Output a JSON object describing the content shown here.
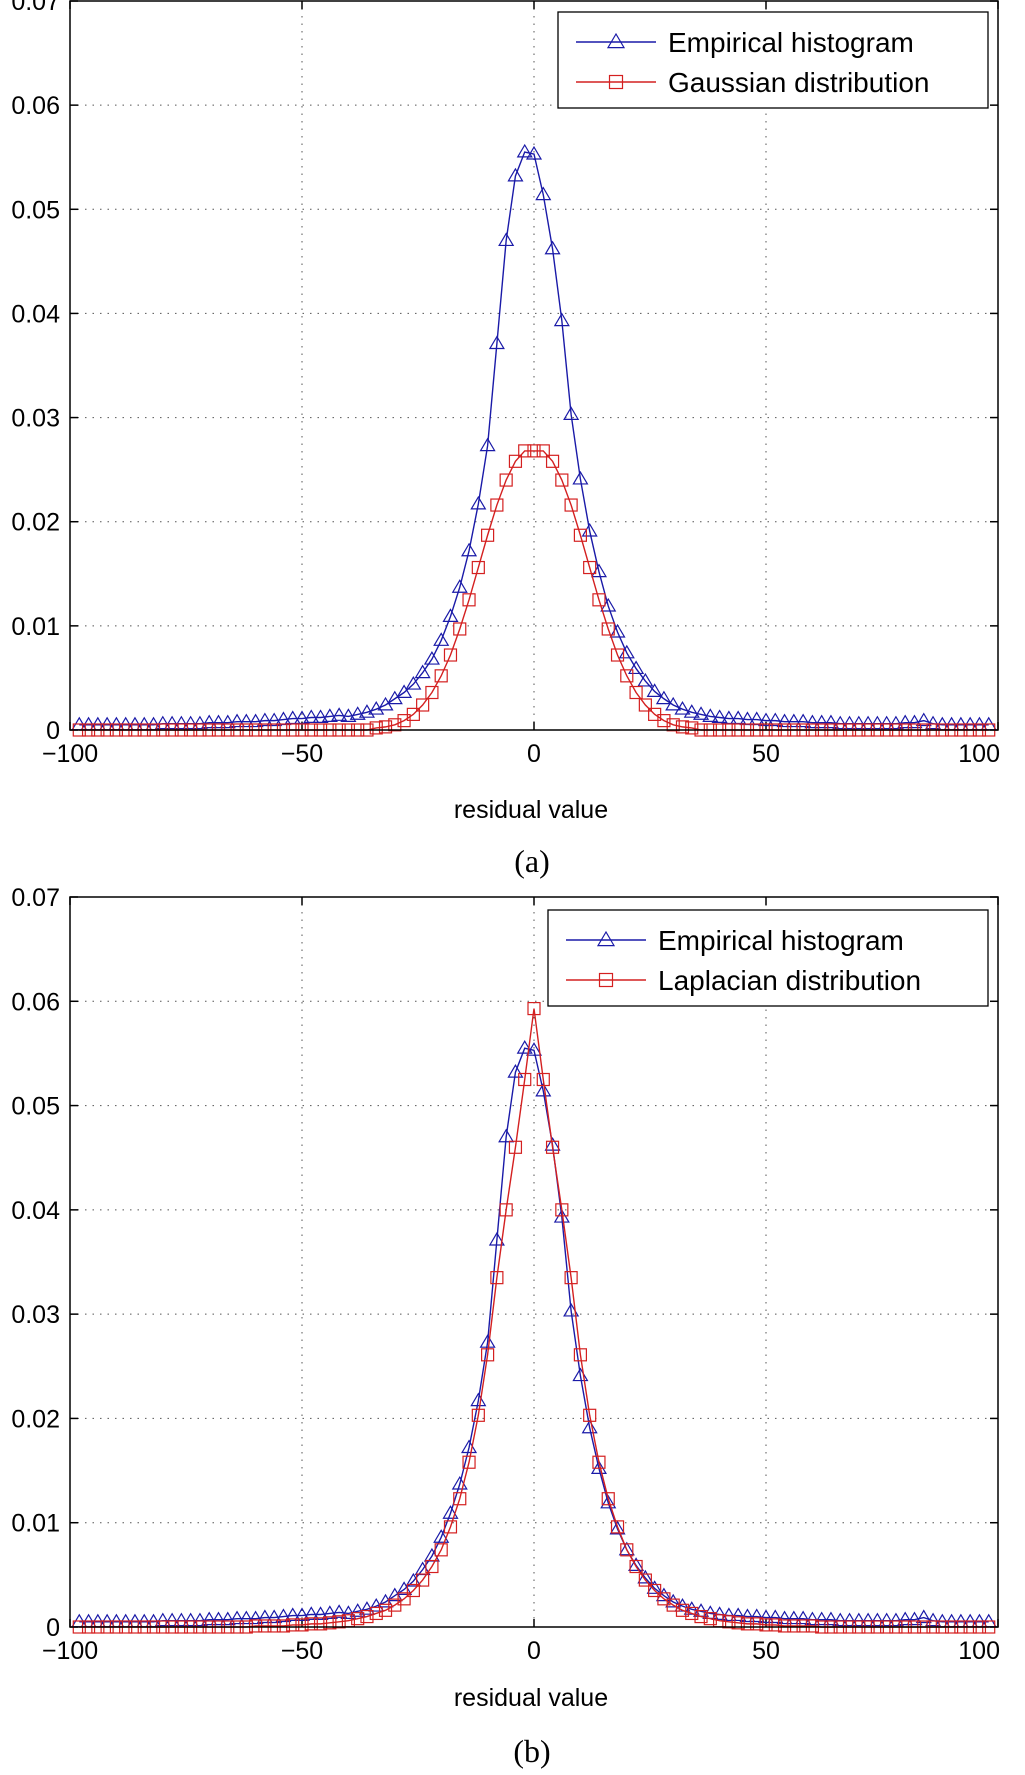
{
  "chart_data": [
    {
      "type": "line",
      "caption": "(a)",
      "xlabel": "residual value",
      "xlim": [
        -100,
        100
      ],
      "ylim": [
        0,
        0.07
      ],
      "xticks": [
        -100,
        -50,
        0,
        50,
        100
      ],
      "xtick_labels": [
        "−100",
        "−50",
        "0",
        "50",
        "100"
      ],
      "yticks": [
        0,
        0.01,
        0.02,
        0.03,
        0.04,
        0.05,
        0.06,
        0.07
      ],
      "ytick_labels": [
        "0",
        "0.01",
        "0.02",
        "0.03",
        "0.04",
        "0.05",
        "0.06",
        "0.07"
      ],
      "grid": true,
      "legend_position": "top-right",
      "series": [
        {
          "name": "Empirical histogram",
          "color": "#1a1aa8",
          "marker": "triangle",
          "x": [
            -98,
            -96,
            -94,
            -92,
            -90,
            -88,
            -86,
            -84,
            -82,
            -80,
            -78,
            -76,
            -74,
            -72,
            -70,
            -68,
            -66,
            -64,
            -62,
            -60,
            -58,
            -56,
            -54,
            -52,
            -50,
            -48,
            -46,
            -44,
            -42,
            -40,
            -38,
            -36,
            -34,
            -32,
            -30,
            -28,
            -26,
            -24,
            -22,
            -20,
            -18,
            -16,
            -14,
            -12,
            -10,
            -8,
            -6,
            -4,
            -2,
            0,
            2,
            4,
            6,
            8,
            10,
            12,
            14,
            16,
            18,
            20,
            22,
            24,
            26,
            28,
            30,
            32,
            34,
            36,
            38,
            40,
            42,
            44,
            46,
            48,
            50,
            52,
            54,
            56,
            58,
            60,
            62,
            64,
            66,
            68,
            70,
            72,
            74,
            76,
            78,
            80,
            82,
            84,
            86,
            88,
            90,
            92,
            94,
            96,
            98
          ],
          "y": [
            0.0005,
            0.0005,
            0.0005,
            0.0005,
            0.0005,
            0.0005,
            0.0005,
            0.0005,
            0.0005,
            0.0006,
            0.0006,
            0.0006,
            0.0006,
            0.0006,
            0.0007,
            0.0007,
            0.0007,
            0.0008,
            0.0008,
            0.0008,
            0.0009,
            0.0009,
            0.001,
            0.0011,
            0.0011,
            0.0012,
            0.0012,
            0.0013,
            0.0014,
            0.0013,
            0.0015,
            0.0017,
            0.002,
            0.0024,
            0.003,
            0.0036,
            0.0044,
            0.0055,
            0.0068,
            0.0086,
            0.0109,
            0.0137,
            0.0172,
            0.0217,
            0.0273,
            0.0371,
            0.047,
            0.0532,
            0.0555,
            0.0553,
            0.0514,
            0.0462,
            0.0393,
            0.0303,
            0.0241,
            0.0191,
            0.0152,
            0.0119,
            0.0094,
            0.0074,
            0.0059,
            0.0047,
            0.0037,
            0.003,
            0.0024,
            0.002,
            0.0017,
            0.0015,
            0.0013,
            0.0012,
            0.0011,
            0.0011,
            0.001,
            0.001,
            0.0009,
            0.0009,
            0.0008,
            0.0008,
            0.0008,
            0.0007,
            0.0007,
            0.0007,
            0.0006,
            0.0006,
            0.0006,
            0.0006,
            0.0006,
            0.0006,
            0.0006,
            0.0007,
            0.0007,
            0.0009,
            0.0006,
            0.0005,
            0.0005,
            0.0005,
            0.0005,
            0.0005,
            0.0005
          ]
        },
        {
          "name": "Gaussian distribution",
          "color": "#d42020",
          "marker": "square",
          "x": [
            -98,
            -96,
            -94,
            -92,
            -90,
            -88,
            -86,
            -84,
            -82,
            -80,
            -78,
            -76,
            -74,
            -72,
            -70,
            -68,
            -66,
            -64,
            -62,
            -60,
            -58,
            -56,
            -54,
            -52,
            -50,
            -48,
            -46,
            -44,
            -42,
            -40,
            -38,
            -36,
            -34,
            -32,
            -30,
            -28,
            -26,
            -24,
            -22,
            -20,
            -18,
            -16,
            -14,
            -12,
            -10,
            -8,
            -6,
            -4,
            -2,
            0,
            2,
            4,
            6,
            8,
            10,
            12,
            14,
            16,
            18,
            20,
            22,
            24,
            26,
            28,
            30,
            32,
            34,
            36,
            38,
            40,
            42,
            44,
            46,
            48,
            50,
            52,
            54,
            56,
            58,
            60,
            62,
            64,
            66,
            68,
            70,
            72,
            74,
            76,
            78,
            80,
            82,
            84,
            86,
            88,
            90,
            92,
            94,
            96,
            98
          ],
          "y": [
            0,
            0,
            0,
            0,
            0,
            0,
            0,
            0,
            0,
            0,
            0,
            0,
            0,
            0,
            0,
            0,
            0,
            0,
            0,
            0,
            0,
            0,
            0,
            0,
            0,
            0,
            0,
            0,
            0,
            0,
            0,
            0,
            0.0002,
            0.0003,
            0.0005,
            0.0009,
            0.0015,
            0.0024,
            0.0036,
            0.0052,
            0.0072,
            0.0097,
            0.0125,
            0.0156,
            0.0187,
            0.0216,
            0.024,
            0.0258,
            0.0268,
            0.0268,
            0.0268,
            0.0258,
            0.024,
            0.0216,
            0.0187,
            0.0156,
            0.0125,
            0.0097,
            0.0072,
            0.0052,
            0.0036,
            0.0024,
            0.0015,
            0.0009,
            0.0005,
            0.0003,
            0.0002,
            0,
            0,
            0,
            0,
            0,
            0,
            0,
            0,
            0,
            0,
            0,
            0,
            0,
            0,
            0,
            0,
            0,
            0,
            0,
            0,
            0,
            0,
            0,
            0,
            0,
            0,
            0,
            0,
            0,
            0,
            0,
            0
          ]
        }
      ]
    },
    {
      "type": "line",
      "caption": "(b)",
      "xlabel": "residual value",
      "xlim": [
        -100,
        100
      ],
      "ylim": [
        0,
        0.07
      ],
      "xticks": [
        -100,
        -50,
        0,
        50,
        100
      ],
      "xtick_labels": [
        "−100",
        "−50",
        "0",
        "50",
        "100"
      ],
      "yticks": [
        0,
        0.01,
        0.02,
        0.03,
        0.04,
        0.05,
        0.06,
        0.07
      ],
      "ytick_labels": [
        "0",
        "0.01",
        "0.02",
        "0.03",
        "0.04",
        "0.05",
        "0.06",
        "0.07"
      ],
      "grid": true,
      "legend_position": "top-right",
      "series": [
        {
          "name": "Empirical histogram",
          "color": "#1a1aa8",
          "marker": "triangle",
          "x": [
            -98,
            -96,
            -94,
            -92,
            -90,
            -88,
            -86,
            -84,
            -82,
            -80,
            -78,
            -76,
            -74,
            -72,
            -70,
            -68,
            -66,
            -64,
            -62,
            -60,
            -58,
            -56,
            -54,
            -52,
            -50,
            -48,
            -46,
            -44,
            -42,
            -40,
            -38,
            -36,
            -34,
            -32,
            -30,
            -28,
            -26,
            -24,
            -22,
            -20,
            -18,
            -16,
            -14,
            -12,
            -10,
            -8,
            -6,
            -4,
            -2,
            0,
            2,
            4,
            6,
            8,
            10,
            12,
            14,
            16,
            18,
            20,
            22,
            24,
            26,
            28,
            30,
            32,
            34,
            36,
            38,
            40,
            42,
            44,
            46,
            48,
            50,
            52,
            54,
            56,
            58,
            60,
            62,
            64,
            66,
            68,
            70,
            72,
            74,
            76,
            78,
            80,
            82,
            84,
            86,
            88,
            90,
            92,
            94,
            96,
            98
          ],
          "y": [
            0.0005,
            0.0005,
            0.0005,
            0.0005,
            0.0005,
            0.0005,
            0.0005,
            0.0005,
            0.0005,
            0.0006,
            0.0006,
            0.0006,
            0.0006,
            0.0006,
            0.0007,
            0.0007,
            0.0007,
            0.0008,
            0.0008,
            0.0008,
            0.0009,
            0.0009,
            0.001,
            0.0011,
            0.0011,
            0.0012,
            0.0012,
            0.0013,
            0.0014,
            0.0013,
            0.0015,
            0.0017,
            0.002,
            0.0024,
            0.003,
            0.0036,
            0.0044,
            0.0055,
            0.0068,
            0.0086,
            0.0109,
            0.0137,
            0.0172,
            0.0217,
            0.0273,
            0.0371,
            0.047,
            0.0532,
            0.0555,
            0.0553,
            0.0514,
            0.0462,
            0.0393,
            0.0303,
            0.0241,
            0.0191,
            0.0152,
            0.0119,
            0.0094,
            0.0074,
            0.0059,
            0.0047,
            0.0037,
            0.003,
            0.0024,
            0.002,
            0.0017,
            0.0015,
            0.0013,
            0.0012,
            0.0011,
            0.0011,
            0.001,
            0.001,
            0.0009,
            0.0009,
            0.0008,
            0.0008,
            0.0008,
            0.0007,
            0.0007,
            0.0007,
            0.0006,
            0.0006,
            0.0006,
            0.0006,
            0.0006,
            0.0006,
            0.0006,
            0.0007,
            0.0007,
            0.0009,
            0.0006,
            0.0005,
            0.0005,
            0.0005,
            0.0005,
            0.0005,
            0.0005
          ]
        },
        {
          "name": "Laplacian distribution",
          "color": "#d42020",
          "marker": "square",
          "x": [
            -98,
            -96,
            -94,
            -92,
            -90,
            -88,
            -86,
            -84,
            -82,
            -80,
            -78,
            -76,
            -74,
            -72,
            -70,
            -68,
            -66,
            -64,
            -62,
            -60,
            -58,
            -56,
            -54,
            -52,
            -50,
            -48,
            -46,
            -44,
            -42,
            -40,
            -38,
            -36,
            -34,
            -32,
            -30,
            -28,
            -26,
            -24,
            -22,
            -20,
            -18,
            -16,
            -14,
            -12,
            -10,
            -8,
            -6,
            -4,
            -2,
            0,
            2,
            4,
            6,
            8,
            10,
            12,
            14,
            16,
            18,
            20,
            22,
            24,
            26,
            28,
            30,
            32,
            34,
            36,
            38,
            40,
            42,
            44,
            46,
            48,
            50,
            52,
            54,
            56,
            58,
            60,
            62,
            64,
            66,
            68,
            70,
            72,
            74,
            76,
            78,
            80,
            82,
            84,
            86,
            88,
            90,
            92,
            94,
            96,
            98
          ],
          "y": [
            0,
            0,
            0,
            0,
            0,
            0,
            0,
            0,
            0,
            0,
            0,
            0,
            0,
            0,
            0,
            0,
            0,
            0,
            0,
            0.0001,
            0.0001,
            0.0001,
            0.0001,
            0.0002,
            0.0002,
            0.0003,
            0.0003,
            0.0004,
            0.0005,
            0.0006,
            0.0008,
            0.001,
            0.0013,
            0.0016,
            0.0021,
            0.0027,
            0.0035,
            0.0045,
            0.0058,
            0.0074,
            0.0096,
            0.0123,
            0.0158,
            0.0203,
            0.0261,
            0.0335,
            0.04,
            0.046,
            0.0525,
            0.0593,
            0.0525,
            0.046,
            0.04,
            0.0335,
            0.0261,
            0.0203,
            0.0158,
            0.0123,
            0.0096,
            0.0074,
            0.0058,
            0.0045,
            0.0035,
            0.0027,
            0.0021,
            0.0016,
            0.0013,
            0.001,
            0.0008,
            0.0006,
            0.0005,
            0.0004,
            0.0003,
            0.0003,
            0.0002,
            0.0002,
            0.0001,
            0.0001,
            0.0001,
            0.0001,
            0,
            0,
            0,
            0,
            0,
            0,
            0,
            0,
            0,
            0,
            0,
            0,
            0,
            0,
            0,
            0,
            0,
            0,
            0
          ]
        }
      ]
    }
  ]
}
